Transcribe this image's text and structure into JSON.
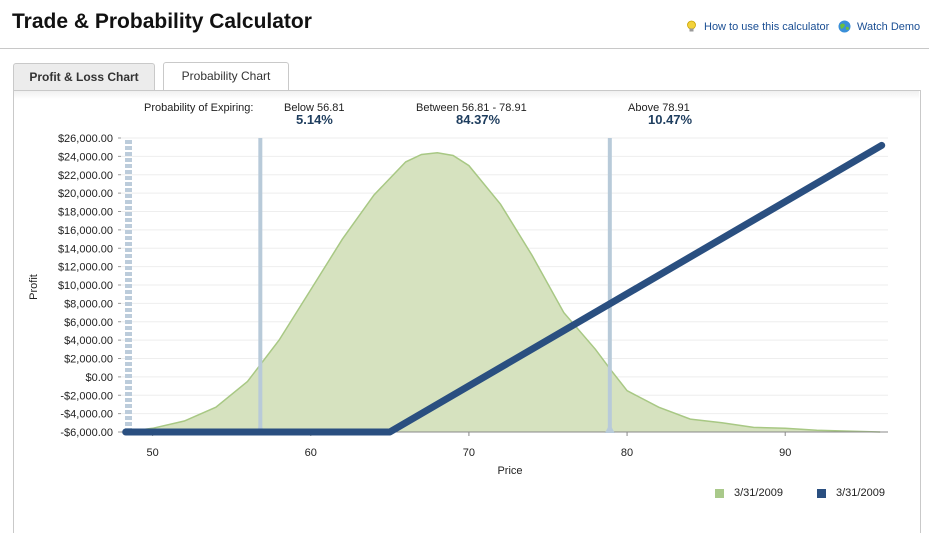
{
  "header": {
    "title": "Trade & Probability Calculator",
    "help_link": "How to use this calculator",
    "demo_link": "Watch Demo"
  },
  "tabs": [
    {
      "label": "Profit & Loss Chart",
      "active": false
    },
    {
      "label": "Probability Chart",
      "active": true
    }
  ],
  "probability": {
    "prefix": "Probability of Expiring:",
    "below_label": "Below 56.81",
    "below_value": "5.14%",
    "between_label": "Between 56.81 - 78.91",
    "between_value": "84.37%",
    "above_label": "Above 78.91",
    "above_value": "10.47%"
  },
  "colors": {
    "distribution_fill": "#d6e2bf",
    "distribution_stroke": "#a8c884",
    "payoff_line": "#2a4f80",
    "marker_line": "#b8cad9",
    "legend_green": "#a9c98a",
    "legend_blue": "#2a4f80"
  },
  "legend": [
    {
      "label": "3/31/2009",
      "color": "#a9c98a"
    },
    {
      "label": "3/31/2009",
      "color": "#2a4f80"
    }
  ],
  "chart_data": {
    "type": "area",
    "xlabel": "Price",
    "ylabel": "Profit",
    "xlim": [
      48,
      96.5
    ],
    "ylim": [
      -6000,
      26000
    ],
    "x_ticks": [
      50,
      60,
      70,
      80,
      90
    ],
    "y_tick_values": [
      -6000,
      -4000,
      -2000,
      0,
      2000,
      4000,
      6000,
      8000,
      10000,
      12000,
      14000,
      16000,
      18000,
      20000,
      22000,
      24000,
      26000
    ],
    "y_tick_labels": [
      "-$6,000.00",
      "-$4,000.00",
      "-$2,000.00",
      "$0.00",
      "$2,000.00",
      "$4,000.00",
      "$6,000.00",
      "$8,000.00",
      "$10,000.00",
      "$12,000.00",
      "$14,000.00",
      "$16,000.00",
      "$18,000.00",
      "$20,000.00",
      "$22,000.00",
      "$24,000.00",
      "$26,000.00"
    ],
    "markers": [
      56.81,
      78.91
    ],
    "series": [
      {
        "name": "3/31/2009",
        "type": "area",
        "x": [
          48.2,
          50,
          52,
          54,
          56,
          58,
          60,
          62,
          64,
          66,
          67,
          68,
          69,
          70,
          72,
          74,
          76,
          78,
          79,
          80,
          82,
          84,
          86,
          88,
          90,
          92,
          94,
          96
        ],
        "y": [
          -6000,
          -5600,
          -4800,
          -3300,
          -500,
          4000,
          9500,
          15000,
          19800,
          23400,
          24200,
          24400,
          24100,
          23000,
          18800,
          13200,
          7000,
          3000,
          700,
          -1500,
          -3300,
          -4600,
          -5000,
          -5500,
          -5600,
          -5800,
          -5900,
          -6000
        ]
      },
      {
        "name": "3/31/2009",
        "type": "line",
        "x": [
          48.3,
          65,
          96.1
        ],
        "y": [
          -6000,
          -6000,
          25200
        ]
      }
    ]
  }
}
